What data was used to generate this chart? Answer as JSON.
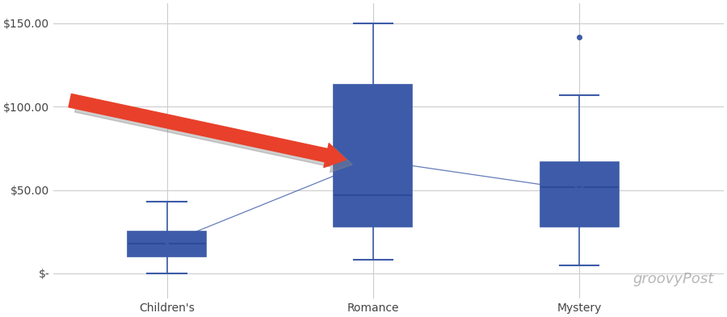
{
  "categories": [
    "Children's",
    "Romance",
    "Mystery"
  ],
  "box_data": {
    "Children's": {
      "whislo": 0,
      "q1": 10,
      "med": 18,
      "q3": 25,
      "whishi": 43,
      "mean": 18,
      "fliers": []
    },
    "Romance": {
      "whislo": 8,
      "q1": 28,
      "med": 47,
      "q3": 113,
      "whishi": 150,
      "mean": 68,
      "fliers": []
    },
    "Mystery": {
      "whislo": 5,
      "q1": 28,
      "med": 52,
      "q3": 67,
      "whishi": 107,
      "mean": 50,
      "fliers": [
        142
      ]
    }
  },
  "box_color": "#3D5BA8",
  "median_color": "#2E4A9A",
  "background_color": "#FFFFFF",
  "grid_color": "#CCCCCC",
  "ytick_labels": [
    "$-",
    "$50.00",
    "$100.00",
    "$150.00"
  ],
  "ytick_values": [
    0,
    50,
    100,
    150
  ],
  "ylim": [
    -15,
    162
  ],
  "xlim": [
    -0.55,
    2.7
  ],
  "arrow_color": "#E8402A",
  "arrow_shadow_color": "#888888",
  "watermark": "groovyPost",
  "fig_width": 9.0,
  "fig_height": 3.93,
  "dpi": 100
}
